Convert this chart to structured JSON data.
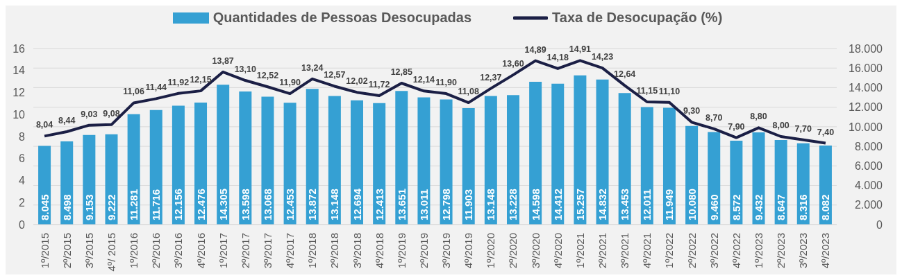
{
  "chart_data": {
    "type": "bar",
    "categories": [
      "1º/2015",
      "2º/2015",
      "3º/2015",
      "4º/ 2015",
      "1º/2016",
      "2º/2016",
      "3º/2016",
      "4º/2016",
      "1º/2017",
      "2º/2017",
      "3º/2017",
      "4º/2017",
      "1º/2018",
      "2º/2018",
      "3º/2018",
      "4º/2018",
      "1º/2019",
      "2º/2019",
      "3º/2019",
      "4º/2019",
      "1º/2020",
      "2º/2020",
      "3º/2020",
      "4º/2020",
      "1º/2021",
      "2º/2021",
      "3º/2021",
      "4º/2021",
      "1º/2022",
      "2º/2022",
      "3º/2022",
      "4º/2022",
      "1º/2023",
      "2º/2023",
      "3º/2023",
      "4º/2023"
    ],
    "series": [
      {
        "name": "Quantidades de Pessoas Desocupadas",
        "type": "bar",
        "axis": "y2",
        "color": "#35a0d3",
        "values": [
          8045,
          8498,
          9153,
          9222,
          11281,
          11716,
          12156,
          12476,
          14305,
          13598,
          13068,
          12453,
          13872,
          13148,
          12694,
          12413,
          13651,
          13011,
          12798,
          11903,
          13148,
          13228,
          14598,
          14412,
          15257,
          14832,
          13453,
          12011,
          11949,
          10080,
          9460,
          8572,
          9432,
          8647,
          8316,
          8082
        ],
        "value_labels": [
          "8.045",
          "8.498",
          "9.153",
          "9.222",
          "11.281",
          "11.716",
          "12.156",
          "12.476",
          "14.305",
          "13.598",
          "13.068",
          "12.453",
          "13.872",
          "13.148",
          "12.694",
          "12.413",
          "13.651",
          "13.011",
          "12.798",
          "11.903",
          "13.148",
          "13.228",
          "14.598",
          "14.412",
          "15.257",
          "14.832",
          "13.453",
          "12.011",
          "11.949",
          "10.080",
          "9.460",
          "8.572",
          "9.432",
          "8.647",
          "8.316",
          "8.082"
        ]
      },
      {
        "name": "Taxa de Desocupação (%)",
        "type": "line",
        "color": "#1b1f45",
        "values": [
          8.04,
          8.44,
          9.03,
          9.08,
          11.06,
          11.44,
          11.92,
          12.15,
          13.87,
          13.1,
          12.52,
          11.9,
          13.24,
          12.57,
          12.02,
          11.72,
          12.85,
          12.14,
          11.9,
          11.08,
          12.37,
          13.6,
          14.89,
          14.18,
          14.91,
          14.23,
          12.64,
          11.15,
          11.1,
          9.3,
          8.7,
          7.9,
          8.8,
          8.0,
          7.7,
          7.4
        ],
        "value_labels": [
          "8,04",
          "8,44",
          "9,03",
          "9,08",
          "11,06",
          "11,44",
          "11,92",
          "12,15",
          "13,87",
          "13,10",
          "12,52",
          "11,90",
          "13,24",
          "12,57",
          "12,02",
          "11,72",
          "12,85",
          "12,14",
          "11,90",
          "11,08",
          "12,37",
          "13,60",
          "14,89",
          "14,18",
          "14,91",
          "14,23",
          "12,64",
          "11,15",
          "11,10",
          "9,30",
          "8,70",
          "7,90",
          "8,80",
          "8,00",
          "7,70",
          "7,40"
        ]
      }
    ],
    "ylim": [
      0,
      16
    ],
    "yticks": [
      0,
      2,
      4,
      6,
      8,
      10,
      12,
      14,
      16
    ],
    "y2lim": [
      0,
      18000
    ],
    "y2ticks": [
      {
        "value": 0,
        "label": "0"
      },
      {
        "value": 2000,
        "label": "2.000"
      },
      {
        "value": 4000,
        "label": "4.000"
      },
      {
        "value": 6000,
        "label": "6.000"
      },
      {
        "value": 8000,
        "label": "8.000"
      },
      {
        "value": 10000,
        "label": "10.000"
      },
      {
        "value": 12000,
        "label": "12.000"
      },
      {
        "value": 14000,
        "label": "14.000"
      },
      {
        "value": 16000,
        "label": "16.000"
      },
      {
        "value": 18000,
        "label": "18.000"
      }
    ],
    "grid": "y",
    "legend": "top",
    "marker": "none",
    "line_style": "solid"
  }
}
